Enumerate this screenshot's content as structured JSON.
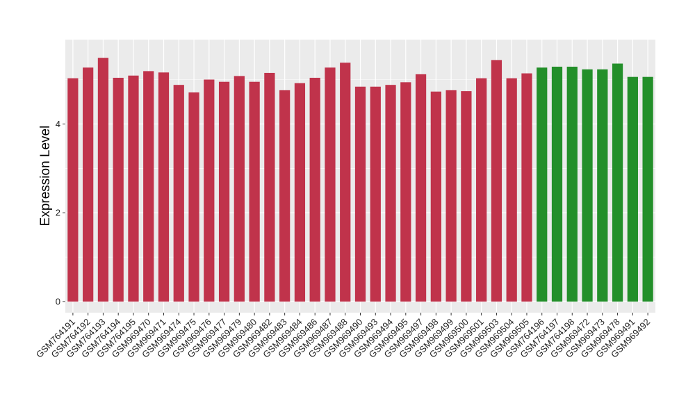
{
  "chart_data": {
    "type": "bar",
    "xlabel": "",
    "ylabel": "Expression Level",
    "ylim": [
      -0.25,
      5.9
    ],
    "yticks": [
      0,
      2,
      4
    ],
    "grid": true,
    "background": "#ebebeb",
    "gridline_color": "#ffffff",
    "categories": [
      "GSM764191",
      "GSM764192",
      "GSM764193",
      "GSM764194",
      "GSM764195",
      "GSM969470",
      "GSM969471",
      "GSM969474",
      "GSM969475",
      "GSM969476",
      "GSM969477",
      "GSM969479",
      "GSM969480",
      "GSM969482",
      "GSM969483",
      "GSM969484",
      "GSM969486",
      "GSM969487",
      "GSM969488",
      "GSM969490",
      "GSM969493",
      "GSM969494",
      "GSM969495",
      "GSM969497",
      "GSM969498",
      "GSM969499",
      "GSM969500",
      "GSM969501",
      "GSM969503",
      "GSM969504",
      "GSM969505",
      "GSM764196",
      "GSM764197",
      "GSM764198",
      "GSM969472",
      "GSM969473",
      "GSM969478",
      "GSM969491",
      "GSM969492"
    ],
    "values": [
      5.03,
      5.27,
      5.49,
      5.04,
      5.09,
      5.19,
      5.16,
      4.88,
      4.71,
      5.0,
      4.95,
      5.08,
      4.95,
      5.15,
      4.76,
      4.92,
      5.04,
      5.27,
      5.38,
      4.84,
      4.84,
      4.88,
      4.94,
      5.12,
      4.73,
      4.76,
      4.74,
      5.03,
      5.44,
      5.03,
      5.14,
      5.27,
      5.29,
      5.29,
      5.23,
      5.23,
      5.36,
      5.06,
      5.06
    ],
    "groups": [
      "a",
      "a",
      "a",
      "a",
      "a",
      "a",
      "a",
      "a",
      "a",
      "a",
      "a",
      "a",
      "a",
      "a",
      "a",
      "a",
      "a",
      "a",
      "a",
      "a",
      "a",
      "a",
      "a",
      "a",
      "a",
      "a",
      "a",
      "a",
      "a",
      "a",
      "a",
      "b",
      "b",
      "b",
      "b",
      "b",
      "b",
      "b",
      "b"
    ],
    "group_colors": {
      "a": "#c0334b",
      "b": "#238f2a"
    }
  }
}
